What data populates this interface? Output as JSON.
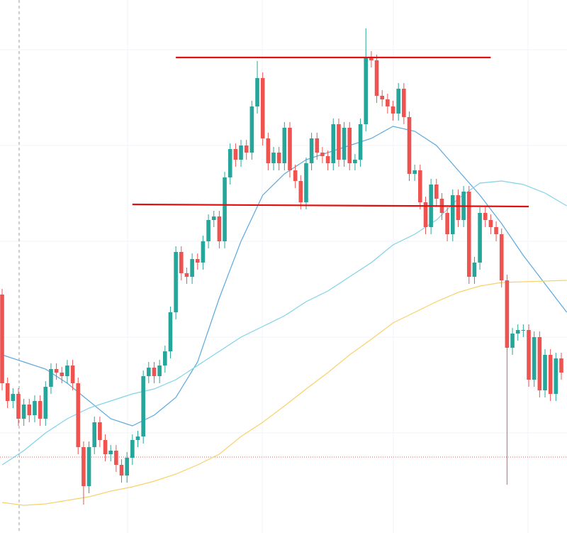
{
  "chart_data": {
    "type": "candlestick",
    "ylim": [
      0,
      751
    ],
    "up_color": "#26a69a",
    "down_color": "#ef5350",
    "open": [
      336,
      211,
      186,
      196,
      161,
      181,
      166,
      186,
      161,
      206,
      231,
      226,
      221,
      236,
      211,
      121,
      66,
      121,
      156,
      131,
      111,
      116,
      96,
      81,
      106,
      131,
      136,
      221,
      233,
      221,
      236,
      256,
      311,
      396,
      366,
      361,
      386,
      381,
      411,
      441,
      446,
      411,
      501,
      541,
      526,
      546,
      536,
      601,
      641,
      556,
      521,
      536,
      521,
      571,
      511,
      496,
      466,
      521,
      556,
      536,
      531,
      521,
      576,
      526,
      571,
      521,
      526,
      576,
      671,
      666,
      616,
      611,
      601,
      591,
      626,
      586,
      506,
      511,
      466,
      431,
      491,
      471,
      451,
      421,
      476,
      441,
      481,
      361,
      381,
      451,
      441,
      431,
      421,
      356,
      261,
      281,
      286,
      286,
      216,
      276,
      201,
      251,
      196,
      246
    ],
    "high": [
      344,
      219,
      204,
      204,
      189,
      189,
      194,
      194,
      214,
      239,
      239,
      234,
      244,
      244,
      219,
      129,
      129,
      164,
      164,
      139,
      124,
      124,
      104,
      114,
      139,
      144,
      229,
      241,
      241,
      244,
      264,
      319,
      404,
      404,
      374,
      394,
      394,
      419,
      449,
      454,
      454,
      509,
      549,
      549,
      554,
      554,
      609,
      665,
      649,
      564,
      544,
      544,
      579,
      579,
      519,
      504,
      529,
      564,
      564,
      544,
      539,
      584,
      584,
      579,
      579,
      534,
      584,
      711,
      679,
      674,
      624,
      619,
      609,
      634,
      634,
      594,
      519,
      519,
      474,
      499,
      499,
      479,
      459,
      484,
      484,
      489,
      489,
      389,
      459,
      459,
      449,
      439,
      429,
      364,
      289,
      294,
      294,
      294,
      284,
      284,
      259,
      259,
      254,
      254
    ],
    "low": [
      201,
      176,
      176,
      151,
      151,
      156,
      156,
      151,
      151,
      196,
      216,
      211,
      211,
      201,
      111,
      40,
      56,
      111,
      121,
      101,
      101,
      86,
      71,
      71,
      96,
      121,
      126,
      211,
      211,
      211,
      226,
      246,
      301,
      356,
      351,
      351,
      371,
      371,
      401,
      431,
      401,
      401,
      491,
      516,
      516,
      526,
      526,
      591,
      546,
      511,
      511,
      511,
      511,
      501,
      486,
      456,
      456,
      511,
      526,
      521,
      511,
      511,
      516,
      516,
      511,
      511,
      516,
      566,
      656,
      606,
      601,
      591,
      581,
      581,
      576,
      496,
      496,
      456,
      421,
      421,
      461,
      441,
      411,
      411,
      431,
      431,
      351,
      351,
      371,
      431,
      421,
      411,
      346,
      68,
      251,
      271,
      276,
      206,
      206,
      191,
      191,
      186,
      186,
      216
    ],
    "close": [
      211,
      186,
      196,
      161,
      181,
      166,
      186,
      161,
      206,
      231,
      226,
      221,
      236,
      211,
      121,
      66,
      121,
      156,
      131,
      111,
      116,
      96,
      81,
      106,
      131,
      136,
      221,
      233,
      221,
      236,
      256,
      311,
      396,
      366,
      361,
      386,
      381,
      411,
      441,
      446,
      411,
      501,
      541,
      526,
      546,
      536,
      601,
      641,
      556,
      521,
      536,
      521,
      571,
      511,
      496,
      466,
      521,
      556,
      536,
      531,
      521,
      576,
      526,
      571,
      521,
      526,
      576,
      671,
      666,
      616,
      611,
      601,
      591,
      626,
      586,
      506,
      511,
      466,
      431,
      491,
      471,
      451,
      421,
      476,
      441,
      481,
      361,
      381,
      451,
      441,
      431,
      421,
      356,
      261,
      281,
      286,
      286,
      216,
      276,
      201,
      251,
      196,
      246,
      226
    ],
    "series": [
      {
        "color": "#5aa9e0",
        "x": [
          0,
          4,
          8,
          12,
          16,
          20,
          24,
          28,
          32,
          36,
          40,
          44,
          48,
          52,
          56,
          60,
          64,
          68,
          72,
          76,
          80,
          84,
          88,
          92,
          96,
          100,
          104
        ],
        "values": [
          251,
          241,
          231,
          211,
          186,
          161,
          151,
          166,
          191,
          241,
          331,
          411,
          476,
          506,
          526,
          536,
          546,
          556,
          573,
          566,
          546,
          511,
          476,
          436,
          391,
          351,
          311
        ]
      },
      {
        "color": "#7fd3e8",
        "x": [
          0,
          4,
          8,
          12,
          16,
          20,
          24,
          28,
          32,
          36,
          40,
          44,
          48,
          52,
          56,
          60,
          64,
          68,
          72,
          76,
          80,
          84,
          88,
          92,
          96,
          100,
          104
        ],
        "values": [
          96,
          116,
          141,
          161,
          176,
          186,
          196,
          203,
          216,
          236,
          256,
          276,
          291,
          306,
          326,
          341,
          361,
          381,
          406,
          421,
          441,
          471,
          493,
          496,
          491,
          479,
          461
        ]
      },
      {
        "color": "#f7d26a",
        "x": [
          0,
          4,
          8,
          12,
          16,
          20,
          24,
          28,
          32,
          36,
          40,
          44,
          48,
          52,
          56,
          60,
          64,
          68,
          72,
          76,
          80,
          84,
          88,
          92,
          96,
          100,
          104
        ],
        "values": [
          43,
          39,
          41,
          46,
          51,
          59,
          65,
          73,
          83,
          96,
          111,
          136,
          156,
          179,
          203,
          226,
          251,
          273,
          296,
          311,
          326,
          339,
          348,
          353,
          354,
          355,
          356
        ]
      }
    ],
    "levels": [
      {
        "color": "#e01010",
        "x": [
          32,
          90
        ],
        "values": [
          670,
          670
        ]
      },
      {
        "color": "#e01010",
        "x": [
          24,
          97
        ],
        "values": [
          463,
          460
        ]
      }
    ],
    "price_line": {
      "color": "#ef5350",
      "value": 107
    }
  }
}
